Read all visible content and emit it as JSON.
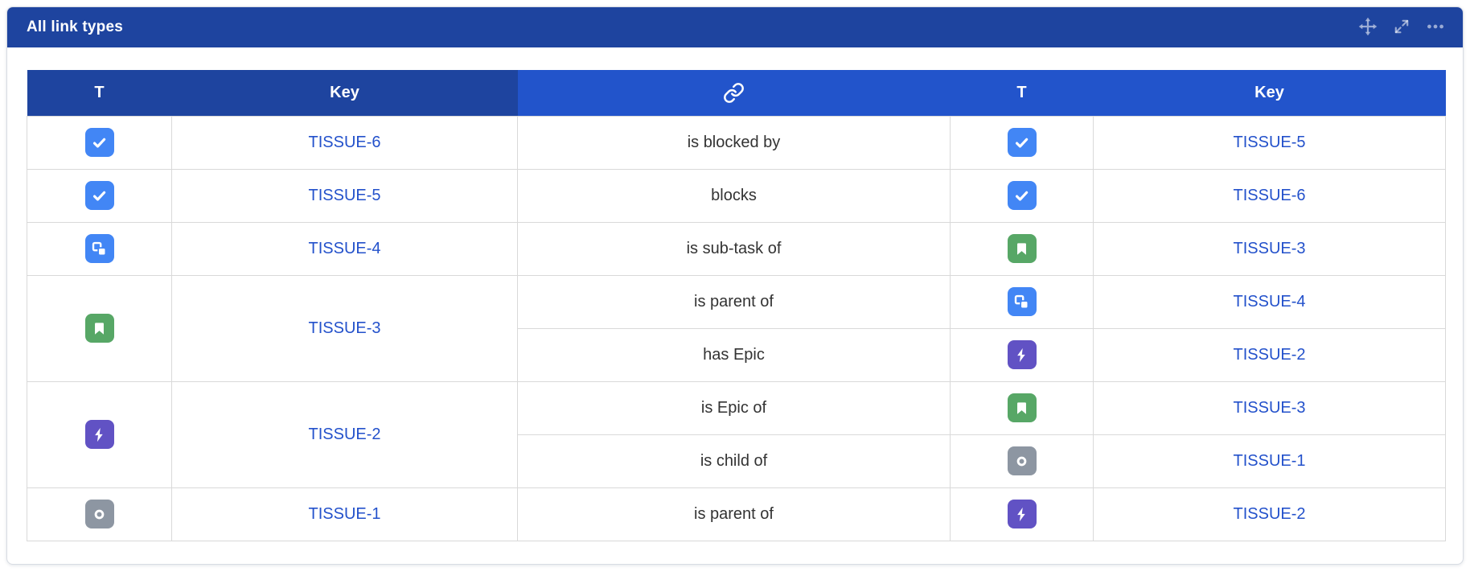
{
  "widget": {
    "title": "All link types",
    "toolbar_icons": [
      "move-icon",
      "expand-icon",
      "more-icon"
    ]
  },
  "colors": {
    "titlebar_bg": "#1e449f",
    "header_dark_bg": "#1e449f",
    "header_light_bg": "#2254cb",
    "link_text": "#2351cb",
    "relation_text": "#333333",
    "row_border": "#d9d9d9",
    "card_border": "#d8dce3"
  },
  "issue_types": {
    "task": {
      "icon": "task-icon",
      "color": "#4286f5"
    },
    "subtask": {
      "icon": "subtask-icon",
      "color": "#4286f5"
    },
    "story": {
      "icon": "story-icon",
      "color": "#57a766"
    },
    "epic": {
      "icon": "epic-icon",
      "color": "#6152c4"
    },
    "generic": {
      "icon": "generic-issue-icon",
      "color": "#8d96a2"
    }
  },
  "table": {
    "columns": [
      {
        "id": "type_left",
        "label": "T"
      },
      {
        "id": "key_left",
        "label": "Key"
      },
      {
        "id": "link",
        "label": "",
        "icon": "link-icon"
      },
      {
        "id": "type_right",
        "label": "T"
      },
      {
        "id": "key_right",
        "label": "Key"
      }
    ],
    "rows": [
      {
        "source": {
          "type": "task",
          "key": "TISSUE-6"
        },
        "links": [
          {
            "relation": "is blocked by",
            "target": {
              "type": "task",
              "key": "TISSUE-5"
            }
          }
        ]
      },
      {
        "source": {
          "type": "task",
          "key": "TISSUE-5"
        },
        "links": [
          {
            "relation": "blocks",
            "target": {
              "type": "task",
              "key": "TISSUE-6"
            }
          }
        ]
      },
      {
        "source": {
          "type": "subtask",
          "key": "TISSUE-4"
        },
        "links": [
          {
            "relation": "is sub-task of",
            "target": {
              "type": "story",
              "key": "TISSUE-3"
            }
          }
        ]
      },
      {
        "source": {
          "type": "story",
          "key": "TISSUE-3"
        },
        "links": [
          {
            "relation": "is parent of",
            "target": {
              "type": "subtask",
              "key": "TISSUE-4"
            }
          },
          {
            "relation": "has Epic",
            "target": {
              "type": "epic",
              "key": "TISSUE-2"
            }
          }
        ]
      },
      {
        "source": {
          "type": "epic",
          "key": "TISSUE-2"
        },
        "links": [
          {
            "relation": "is Epic of",
            "target": {
              "type": "story",
              "key": "TISSUE-3"
            }
          },
          {
            "relation": "is child of",
            "target": {
              "type": "generic",
              "key": "TISSUE-1"
            }
          }
        ]
      },
      {
        "source": {
          "type": "generic",
          "key": "TISSUE-1"
        },
        "links": [
          {
            "relation": "is parent of",
            "target": {
              "type": "epic",
              "key": "TISSUE-2"
            }
          }
        ]
      }
    ]
  }
}
